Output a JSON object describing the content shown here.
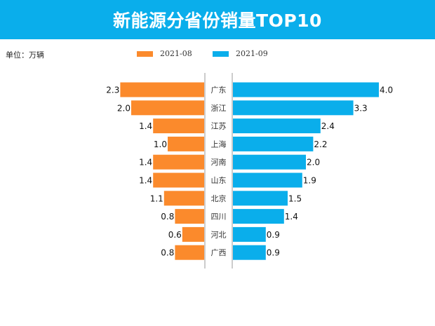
{
  "header": {
    "title": "新能源分省份销量TOP10"
  },
  "unit_label": "单位：万辆",
  "colors": {
    "header": "#0aaeeb",
    "series_0": "#fb8a2c",
    "series_1": "#0aaeeb"
  },
  "chart_data": {
    "type": "bar",
    "orientation": "horizontal-butterfly",
    "title": "新能源分省份销量TOP10",
    "categories": [
      "广东",
      "浙江",
      "江苏",
      "上海",
      "河南",
      "山东",
      "北京",
      "四川",
      "河北",
      "广西"
    ],
    "series": [
      {
        "name": "2021-08",
        "values": [
          2.3,
          2.0,
          1.4,
          1.0,
          1.4,
          1.4,
          1.1,
          0.8,
          0.6,
          0.8
        ],
        "side": "left"
      },
      {
        "name": "2021-09",
        "values": [
          4.0,
          3.3,
          2.4,
          2.2,
          2.0,
          1.9,
          1.5,
          1.4,
          0.9,
          0.9
        ],
        "side": "right"
      }
    ],
    "legend": "top",
    "grid": false,
    "data_labels": true
  }
}
